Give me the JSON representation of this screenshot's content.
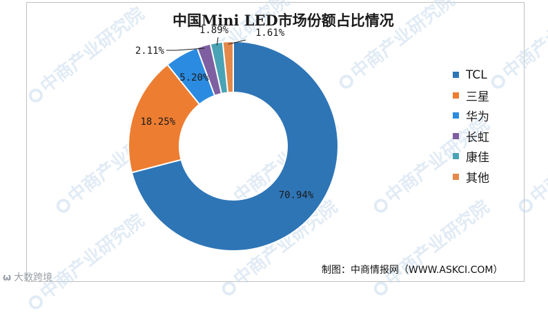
{
  "chart_data": {
    "type": "pie",
    "variant": "donut",
    "title": "中国Mini LED市场份额占比情况",
    "categories": [
      "TCL",
      "三星",
      "华为",
      "长虹",
      "康佳",
      "其他"
    ],
    "values": [
      70.94,
      18.25,
      5.2,
      2.11,
      1.89,
      1.61
    ],
    "data_labels": [
      "70.94%",
      "18.25%",
      "5.20%",
      "2.11%",
      "1.89%",
      "1.61%"
    ],
    "colors": [
      "#2e75b6",
      "#ed7d31",
      "#2b8be0",
      "#7e5fa1",
      "#4aa3b5",
      "#e4894a"
    ],
    "legend_position": "right"
  },
  "source": "制图：中商情报网（WWW.ASKCI.COM）",
  "watermark": {
    "text": "中商产业研究院"
  },
  "corner_logo": {
    "text": "大数跨境"
  }
}
